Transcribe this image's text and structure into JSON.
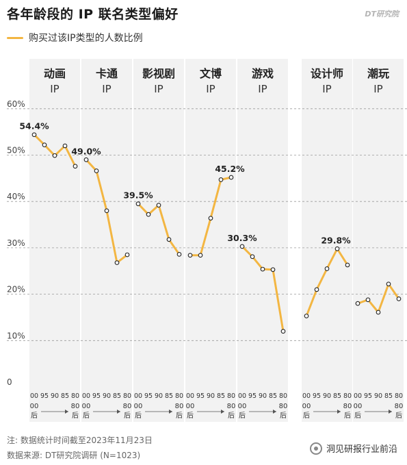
{
  "title": "各年龄段的 IP 联名类型偏好",
  "brand": "DT研究院",
  "legend_label": "购买过该IP类型的人数比例",
  "note": "注: 数据统计时间截至2023年11月23日",
  "source": "数据来源: DT研究院调研 (N=1023)",
  "watermark": "洞见研报行业前沿",
  "colors": {
    "line": "#f3b642",
    "panel": "#f2f2f2",
    "grid": "#9a9a9a"
  },
  "chart_data": {
    "type": "line",
    "ylim": [
      0,
      60
    ],
    "yticks": [
      "0",
      "10%",
      "20%",
      "30%",
      "40%",
      "50%",
      "60%"
    ],
    "x": [
      "00",
      "95",
      "90",
      "85",
      "80"
    ],
    "x_group_label": {
      "start": "00后",
      "end": "80后"
    },
    "series": [
      {
        "name": "动画IP",
        "name_top": "动画",
        "name_bottom": "IP",
        "values": [
          54.4,
          52.2,
          49.9,
          52.0,
          47.6
        ],
        "label": "54.4%",
        "label_index": 0
      },
      {
        "name": "卡通IP",
        "name_top": "卡通",
        "name_bottom": "IP",
        "values": [
          49.0,
          46.6,
          38.0,
          26.8,
          28.5
        ],
        "label": "49.0%",
        "label_index": 0
      },
      {
        "name": "影视剧IP",
        "name_top": "影视剧",
        "name_bottom": "IP",
        "values": [
          39.5,
          37.2,
          39.2,
          31.8,
          28.6
        ],
        "label": "39.5%",
        "label_index": 0
      },
      {
        "name": "文博IP",
        "name_top": "文博",
        "name_bottom": "IP",
        "values": [
          28.4,
          28.4,
          36.4,
          44.7,
          45.2
        ],
        "label": "45.2%",
        "label_index": 4
      },
      {
        "name": "游戏IP",
        "name_top": "游戏",
        "name_bottom": "IP",
        "values": [
          30.3,
          28.1,
          25.4,
          25.3,
          12.0
        ],
        "label": "30.3%",
        "label_index": 0
      },
      {
        "name": "设计师IP",
        "name_top": "设计师",
        "name_bottom": "IP",
        "values": [
          15.3,
          21.0,
          25.5,
          29.8,
          26.3
        ],
        "label": "29.8%",
        "label_index": 3
      },
      {
        "name": "潮玩IP",
        "name_top": "潮玩",
        "name_bottom": "IP",
        "values": [
          18.0,
          18.8,
          16.1,
          22.2,
          19.0
        ],
        "label": "",
        "label_index": -1
      }
    ]
  }
}
